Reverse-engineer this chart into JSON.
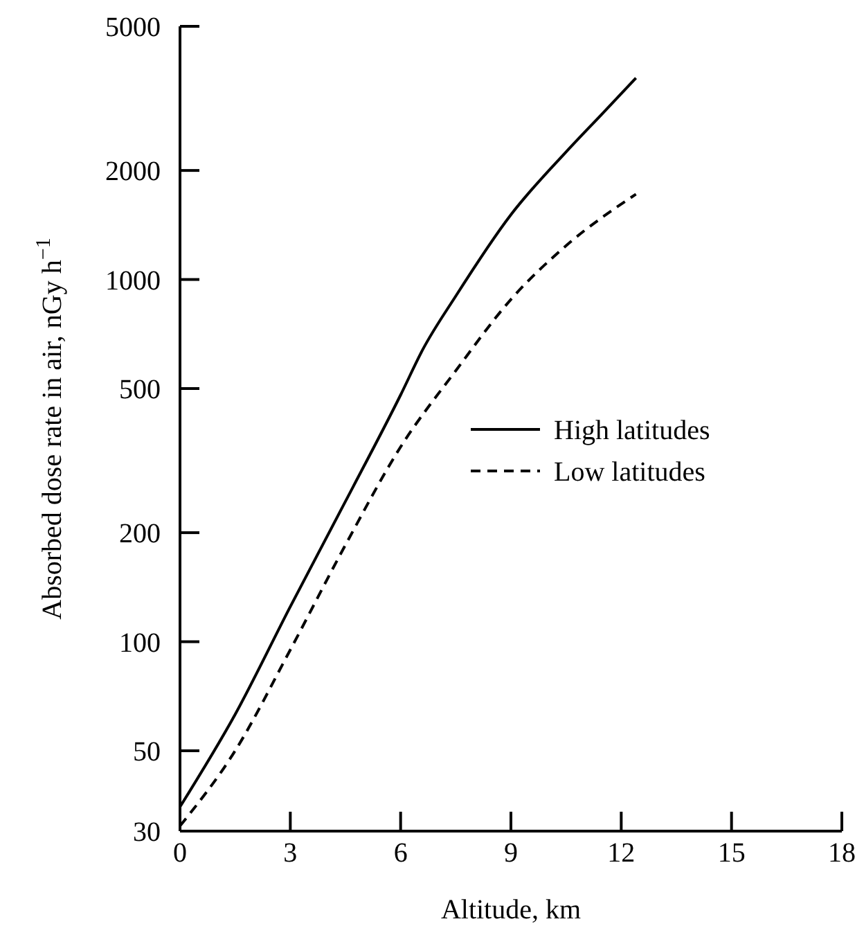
{
  "chart_data": {
    "type": "line",
    "xlabel": "Altitude, km",
    "ylabel": "Absorbed dose rate in air, nGy h$^{−1}$",
    "log": "y",
    "xlim": [
      0,
      18
    ],
    "xticks": [
      0,
      3,
      6,
      9,
      12,
      15,
      18
    ],
    "ylim": [
      30,
      5000
    ],
    "yticks": [
      30,
      50,
      100,
      200,
      500,
      1000,
      2000,
      5000
    ],
    "legend": "right",
    "marker": "none",
    "series": [
      {
        "name": "High latitudes",
        "color": "#000000",
        "line_style": "solid",
        "x": [
          0,
          1.5,
          3,
          4.5,
          6,
          6.6,
          7.5,
          9,
          10.5,
          11.5,
          12.4
        ],
        "values": [
          35,
          63,
          125,
          244,
          480,
          640,
          900,
          1510,
          2250,
          2880,
          3600
        ]
      },
      {
        "name": "Low latitudes",
        "color": "#000000",
        "line_style": "dashed",
        "x": [
          0,
          1.5,
          3,
          4.5,
          6,
          7.5,
          9,
          10.5,
          12.4
        ],
        "values": [
          31,
          50,
          95,
          185,
          345,
          560,
          881,
          1240,
          1720
        ]
      }
    ]
  }
}
